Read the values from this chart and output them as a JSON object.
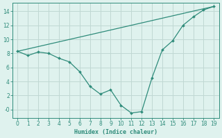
{
  "xlabel": "Humidex (Indice chaleur)",
  "line1_x": [
    0,
    1,
    2,
    3,
    4,
    5,
    6,
    7,
    8,
    9,
    10,
    11,
    12,
    13,
    14,
    15,
    16,
    17,
    18,
    19
  ],
  "line1_y": [
    8.3,
    7.7,
    8.2,
    8.0,
    7.3,
    6.8,
    5.4,
    3.3,
    2.2,
    2.8,
    0.6,
    -0.5,
    -0.3,
    4.5,
    8.5,
    9.8,
    12.0,
    13.2,
    14.2,
    14.7
  ],
  "line2_x": [
    0,
    19
  ],
  "line2_y": [
    8.3,
    14.7
  ],
  "line_color": "#2e8b7a",
  "bg_color": "#dff2ee",
  "grid_color": "#c0d8d3",
  "ylim": [
    -1.2,
    15.2
  ],
  "xlim": [
    -0.5,
    19.5
  ],
  "yticks": [
    0,
    2,
    4,
    6,
    8,
    10,
    12,
    14
  ],
  "ytick_labels": [
    "-0",
    "2",
    "4",
    "6",
    "8",
    "10",
    "12",
    "14"
  ],
  "xticks": [
    0,
    1,
    2,
    3,
    4,
    5,
    6,
    7,
    8,
    9,
    10,
    11,
    12,
    13,
    14,
    15,
    16,
    17,
    18,
    19
  ]
}
